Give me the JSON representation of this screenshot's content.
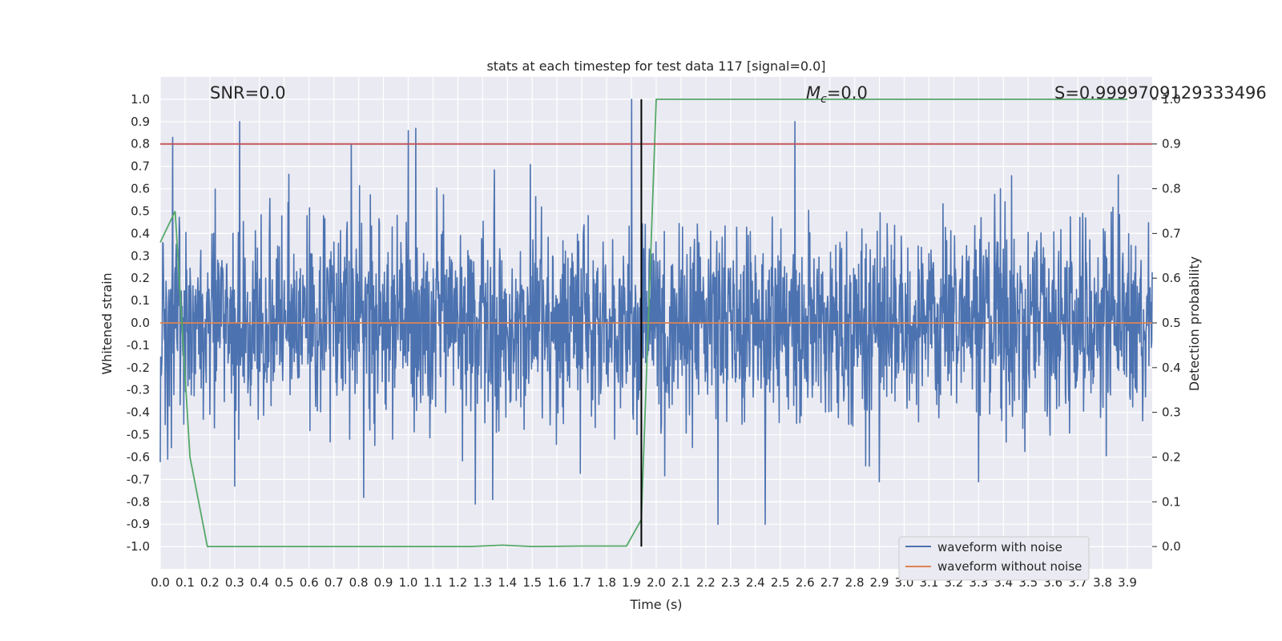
{
  "chart_data": {
    "type": "line",
    "title": "stats at each timestep for test data 117 [signal=0.0]",
    "xlabel": "Time (s)",
    "ylabel": "Whitened strain",
    "y2label": "Detection probability",
    "xlim": [
      0.0,
      4.0
    ],
    "ylim": [
      -1.1,
      1.1
    ],
    "y2lim": [
      -0.05,
      1.05
    ],
    "xticks": [
      "0.0",
      "0.1",
      "0.2",
      "0.3",
      "0.4",
      "0.5",
      "0.6",
      "0.7",
      "0.8",
      "0.9",
      "1.0",
      "1.1",
      "1.2",
      "1.3",
      "1.4",
      "1.5",
      "1.6",
      "1.7",
      "1.8",
      "1.9",
      "2.0",
      "2.1",
      "2.2",
      "2.3",
      "2.4",
      "2.5",
      "2.6",
      "2.7",
      "2.8",
      "2.9",
      "3.0",
      "3.1",
      "3.2",
      "3.3",
      "3.4",
      "3.5",
      "3.6",
      "3.7",
      "3.8",
      "3.9"
    ],
    "yticks": [
      "-1.0",
      "-0.9",
      "-0.8",
      "-0.7",
      "-0.6",
      "-0.5",
      "-0.4",
      "-0.3",
      "-0.2",
      "-0.1",
      "0.0",
      "0.1",
      "0.2",
      "0.3",
      "0.4",
      "0.5",
      "0.6",
      "0.7",
      "0.8",
      "0.9",
      "1.0"
    ],
    "y2ticks": [
      "0.0",
      "0.1",
      "0.2",
      "0.3",
      "0.4",
      "0.5",
      "0.6",
      "0.7",
      "0.8",
      "0.9",
      "1.0"
    ],
    "annotations": {
      "snr": "SNR=0.0",
      "mc_symbol": "M",
      "mc_sub": "c",
      "mc_value": "=0.0",
      "s": "S=0.9999709129333496"
    },
    "noise_band": {
      "description_values": "dense random noise, typical amplitude ~0.3, peaks up to ~0.9",
      "typical_amplitude": 0.3,
      "peak_amplitude": 0.95,
      "peaks": [
        [
          0.05,
          0.83
        ],
        [
          0.32,
          0.9
        ],
        [
          0.77,
          0.8
        ],
        [
          1.0,
          0.86
        ],
        [
          1.03,
          0.87
        ],
        [
          1.9,
          1.0
        ],
        [
          2.56,
          0.9
        ],
        [
          0.82,
          -0.78
        ],
        [
          1.27,
          -0.81
        ],
        [
          1.34,
          -0.79
        ],
        [
          2.25,
          -0.9
        ],
        [
          2.44,
          -0.9
        ],
        [
          3.3,
          -0.71
        ],
        [
          0.3,
          -0.73
        ],
        [
          2.9,
          -0.71
        ]
      ]
    },
    "series": [
      {
        "name": "waveform with noise",
        "color": "#4c72b0",
        "axis": "left"
      },
      {
        "name": "waveform without noise",
        "color": "#dd8452",
        "axis": "left",
        "x": [
          0.0,
          4.0
        ],
        "y": [
          0.0,
          0.0
        ]
      },
      {
        "name": "detection probability",
        "color": "#55a868",
        "axis": "right",
        "x": [
          0.0,
          0.06,
          0.12,
          0.19,
          0.3,
          1.0,
          1.25,
          1.38,
          1.5,
          1.7,
          1.88,
          1.94,
          2.0,
          2.5,
          3.9
        ],
        "y": [
          0.68,
          0.75,
          0.2,
          0.0,
          0.0,
          0.0,
          0.0,
          0.003,
          0.0,
          0.001,
          0.001,
          0.06,
          1.0,
          1.0,
          1.0
        ]
      },
      {
        "name": "threshold",
        "color": "#c44e52",
        "axis": "right",
        "x": [
          0.0,
          4.0
        ],
        "y": [
          0.9,
          0.9
        ]
      }
    ],
    "vline": {
      "x": 1.94,
      "color": "#000000",
      "y2_from": 0.0,
      "y2_to": 1.0
    },
    "legend": [
      "waveform with noise",
      "waveform without noise"
    ],
    "legend_position": "lower-right",
    "grid": true
  }
}
